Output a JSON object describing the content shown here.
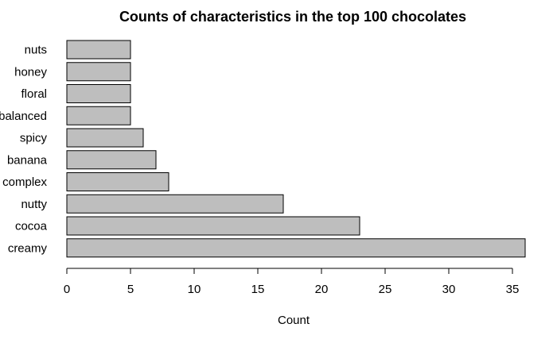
{
  "chart_data": {
    "type": "bar",
    "orientation": "horizontal",
    "title": "Counts of characteristics in the top 100 chocolates",
    "xlabel": "Count",
    "ylabel": "",
    "categories": [
      "creamy",
      "cocoa",
      "nutty",
      "complex",
      "banana",
      "spicy",
      "balanced",
      "floral",
      "honey",
      "nuts"
    ],
    "values": [
      36,
      23,
      17,
      8,
      7,
      6,
      5,
      5,
      5,
      5
    ],
    "xlim": [
      0,
      36
    ],
    "xticks": [
      0,
      5,
      10,
      15,
      20,
      25,
      30,
      35
    ],
    "bar_color": "#bebebe",
    "grid": false,
    "legend": "none"
  }
}
